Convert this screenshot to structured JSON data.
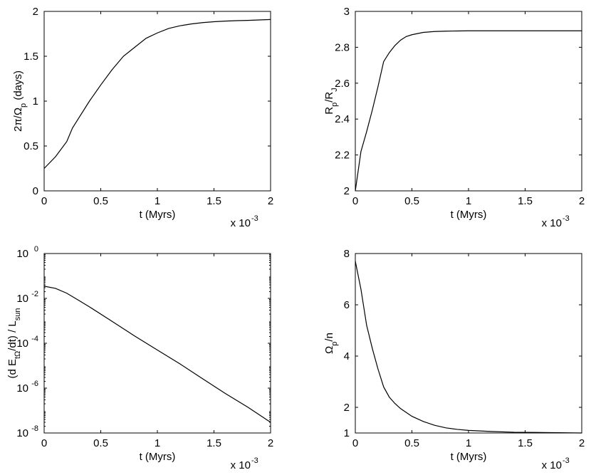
{
  "chart_data": [
    {
      "type": "line",
      "xlabel": "t (Myrs)",
      "ylabel": "2π/Ω_p (days)",
      "ylabel_parts": [
        {
          "t": "2π/Ω",
          "sub": false
        },
        {
          "t": "p",
          "sub": true
        },
        {
          "t": " (days)",
          "sub": false
        }
      ],
      "x_multiplier": "x 10",
      "x_multiplier_exp": "-3",
      "xlim": [
        0,
        2
      ],
      "ylim": [
        0,
        2
      ],
      "yscale": "linear",
      "xticks": [
        0,
        0.5,
        1,
        1.5,
        2
      ],
      "xtick_labels": [
        "0",
        "0.5",
        "1",
        "1.5",
        "2"
      ],
      "yticks": [
        0,
        0.5,
        1,
        1.5,
        2
      ],
      "ytick_labels": [
        "0",
        "0.5",
        "1",
        "1.5",
        "2"
      ],
      "grid": false,
      "series": [
        {
          "x": [
            0,
            0.1,
            0.2,
            0.25,
            0.3,
            0.4,
            0.5,
            0.6,
            0.7,
            0.8,
            0.9,
            1.0,
            1.1,
            1.2,
            1.3,
            1.4,
            1.5,
            1.6,
            1.7,
            1.8,
            1.9,
            2.0
          ],
          "y": [
            0.25,
            0.38,
            0.55,
            0.7,
            0.8,
            1.0,
            1.18,
            1.35,
            1.5,
            1.6,
            1.7,
            1.76,
            1.81,
            1.84,
            1.86,
            1.875,
            1.885,
            1.892,
            1.897,
            1.9,
            1.905,
            1.91
          ]
        }
      ]
    },
    {
      "type": "line",
      "xlabel": "t (Myrs)",
      "ylabel": "R_p/R_J",
      "ylabel_parts": [
        {
          "t": "R",
          "sub": false
        },
        {
          "t": "p",
          "sub": true
        },
        {
          "t": "/R",
          "sub": false
        },
        {
          "t": "J",
          "sub": true
        }
      ],
      "x_multiplier": "x 10",
      "x_multiplier_exp": "-3",
      "xlim": [
        0,
        2
      ],
      "ylim": [
        2,
        3
      ],
      "yscale": "linear",
      "xticks": [
        0,
        0.5,
        1,
        1.5,
        2
      ],
      "xtick_labels": [
        "0",
        "0.5",
        "1",
        "1.5",
        "2"
      ],
      "yticks": [
        2,
        2.2,
        2.4,
        2.6,
        2.8,
        3
      ],
      "ytick_labels": [
        "2",
        "2.2",
        "2.4",
        "2.6",
        "2.8",
        "3"
      ],
      "grid": false,
      "series": [
        {
          "x": [
            0,
            0.05,
            0.1,
            0.15,
            0.2,
            0.25,
            0.3,
            0.35,
            0.4,
            0.45,
            0.5,
            0.6,
            0.7,
            0.8,
            0.9,
            1.0,
            1.2,
            1.5,
            2.0
          ],
          "y": [
            2.0,
            2.22,
            2.33,
            2.45,
            2.58,
            2.72,
            2.77,
            2.81,
            2.84,
            2.86,
            2.87,
            2.883,
            2.888,
            2.89,
            2.891,
            2.892,
            2.892,
            2.892,
            2.892
          ]
        }
      ]
    },
    {
      "type": "line",
      "xlabel": "t (Myrs)",
      "ylabel": "(d E_tΩ/dt) / L_sun",
      "ylabel_parts": [
        {
          "t": "(d E",
          "sub": false
        },
        {
          "t": "tΩ",
          "sub": true
        },
        {
          "t": "/dt) / L",
          "sub": false
        },
        {
          "t": "sun",
          "sub": true
        }
      ],
      "x_multiplier": "x 10",
      "x_multiplier_exp": "-3",
      "xlim": [
        0,
        2
      ],
      "ylim": [
        1e-08,
        1
      ],
      "yscale": "log",
      "xticks": [
        0,
        0.5,
        1,
        1.5,
        2
      ],
      "xtick_labels": [
        "0",
        "0.5",
        "1",
        "1.5",
        "2"
      ],
      "yticks": [
        1e-08,
        1e-06,
        0.0001,
        0.01,
        1
      ],
      "ytick_labels": [
        [
          "10",
          "-8"
        ],
        [
          "10",
          "-6"
        ],
        [
          "10",
          "-4"
        ],
        [
          "10",
          "-2"
        ],
        [
          "10",
          "0"
        ]
      ],
      "grid": false,
      "series": [
        {
          "x": [
            0,
            0.1,
            0.2,
            0.3,
            0.4,
            0.6,
            0.8,
            1.0,
            1.2,
            1.4,
            1.6,
            1.8,
            2.0
          ],
          "y": [
            0.035,
            0.028,
            0.017,
            0.0085,
            0.0042,
            0.00095,
            0.00021,
            5e-05,
            1.2e-05,
            2.6e-06,
            5.8e-07,
            1.4e-07,
            3e-08
          ]
        }
      ]
    },
    {
      "type": "line",
      "xlabel": "t (Myrs)",
      "ylabel": "Ω_p/n",
      "ylabel_parts": [
        {
          "t": "Ω",
          "sub": false
        },
        {
          "t": "p",
          "sub": true
        },
        {
          "t": "/n",
          "sub": false
        }
      ],
      "x_multiplier": "x 10",
      "x_multiplier_exp": "-3",
      "xlim": [
        0,
        2
      ],
      "ylim": [
        1,
        8
      ],
      "yscale": "linear",
      "xticks": [
        0,
        0.5,
        1,
        1.5,
        2
      ],
      "xtick_labels": [
        "0",
        "0.5",
        "1",
        "1.5",
        "2"
      ],
      "yticks": [
        1,
        2,
        4,
        6,
        8
      ],
      "ytick_labels": [
        "1",
        "2",
        "4",
        "6",
        "8"
      ],
      "grid": false,
      "series": [
        {
          "x": [
            0,
            0.05,
            0.1,
            0.15,
            0.2,
            0.25,
            0.3,
            0.35,
            0.4,
            0.5,
            0.6,
            0.7,
            0.8,
            0.9,
            1.0,
            1.2,
            1.4,
            1.6,
            1.8,
            2.0
          ],
          "y": [
            7.7,
            6.6,
            5.2,
            4.3,
            3.5,
            2.8,
            2.4,
            2.15,
            1.95,
            1.65,
            1.45,
            1.3,
            1.2,
            1.14,
            1.1,
            1.06,
            1.03,
            1.02,
            1.01,
            1.0
          ]
        }
      ]
    }
  ]
}
